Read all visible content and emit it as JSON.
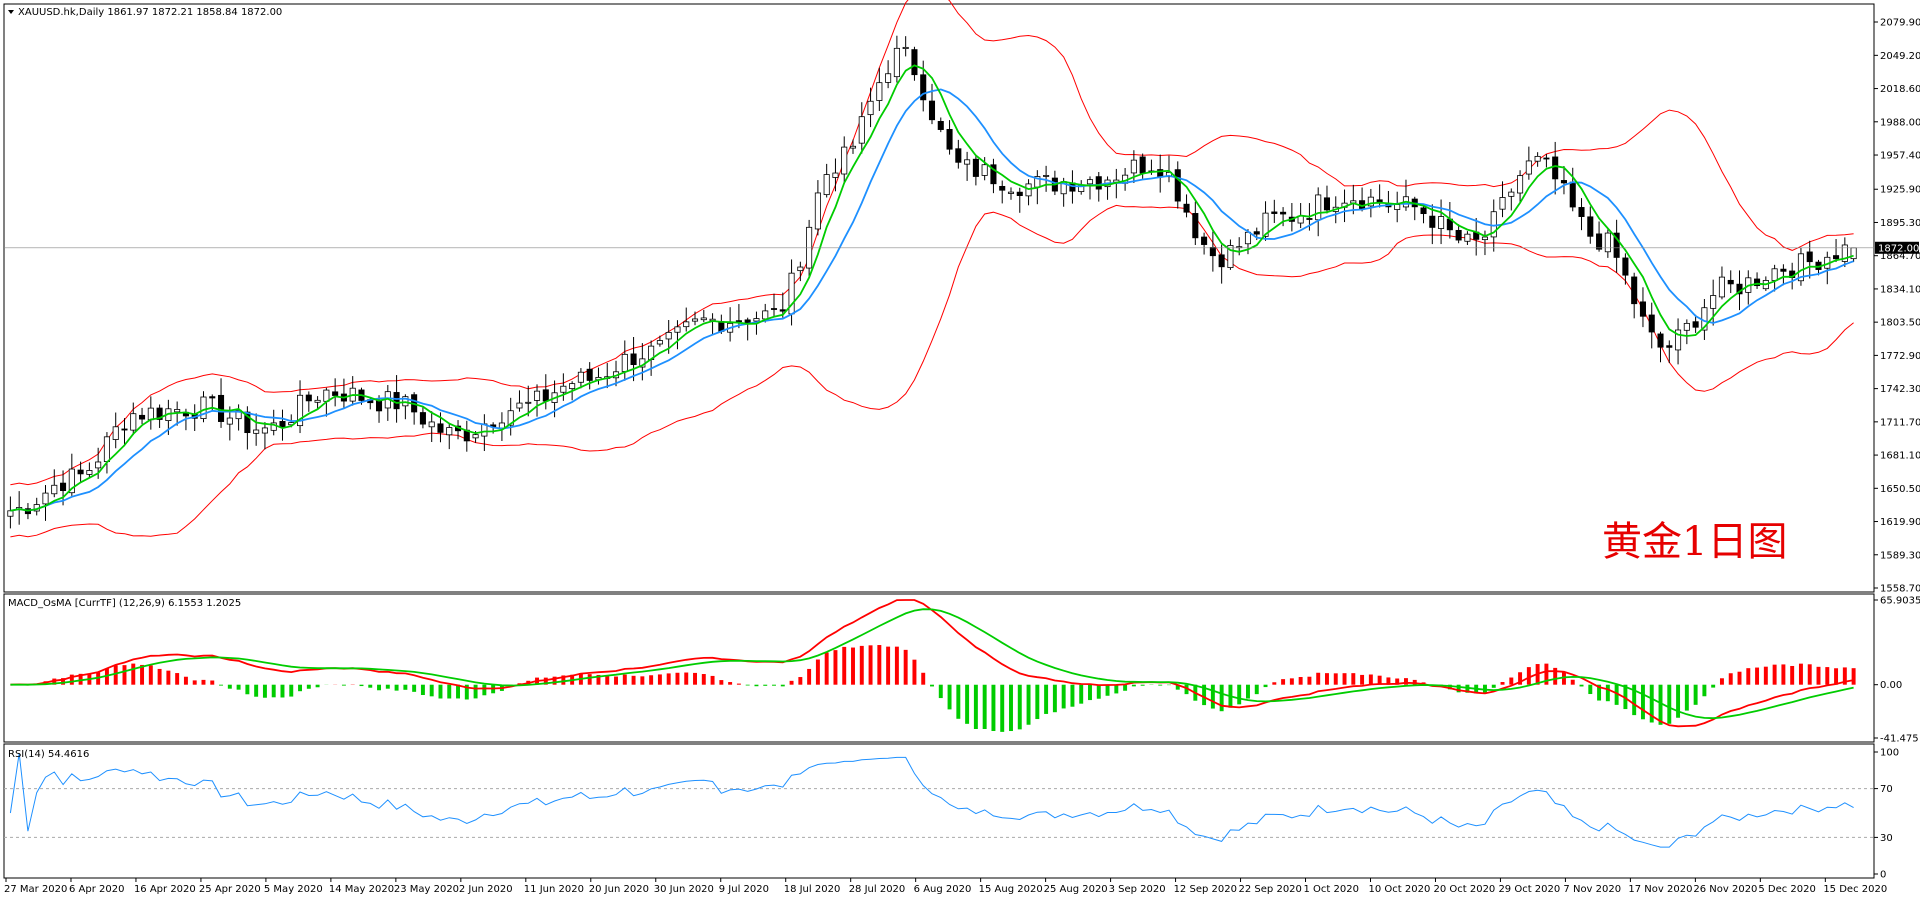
{
  "main_panel": {
    "header": "XAUUSD.hk,Daily  1861.97 1872.21 1858.84 1872.00",
    "overlay_label": "黄金1日图",
    "price_tag": "1872.00",
    "y_ticks": [
      "2079.90",
      "2049.20",
      "2018.60",
      "1988.00",
      "1957.40",
      "1925.90",
      "1895.30",
      "1864.70",
      "1834.10",
      "1803.50",
      "1772.90",
      "1742.30",
      "1711.70",
      "1681.10",
      "1650.50",
      "1619.90",
      "1589.30",
      "1558.70"
    ],
    "last_price": 1872.0
  },
  "macd_panel": {
    "header": "MACD_OsMA [CurrTF] (12,26,9) 6.1553 1.2025",
    "y_ticks": [
      "65.9035",
      "0.00",
      "-41.475"
    ]
  },
  "rsi_panel": {
    "header": "RSI(14) 54.4616",
    "y_ticks": [
      "100",
      "70",
      "30",
      "0"
    ],
    "levels": [
      70,
      30
    ]
  },
  "x_ticks": [
    "27 Mar 2020",
    "6 Apr 2020",
    "16 Apr 2020",
    "25 Apr 2020",
    "5 May 2020",
    "14 May 2020",
    "23 May 2020",
    "2 Jun 2020",
    "11 Jun 2020",
    "20 Jun 2020",
    "30 Jun 2020",
    "9 Jul 2020",
    "18 Jul 2020",
    "28 Jul 2020",
    "6 Aug 2020",
    "15 Aug 2020",
    "25 Aug 2020",
    "3 Sep 2020",
    "12 Sep 2020",
    "22 Sep 2020",
    "1 Oct 2020",
    "10 Oct 2020",
    "20 Oct 2020",
    "29 Oct 2020",
    "7 Nov 2020",
    "17 Nov 2020",
    "26 Nov 2020",
    "5 Dec 2020",
    "15 Dec 2020"
  ],
  "chart_data": [
    {
      "type": "candlestick",
      "symbol": "XAUUSD.hk",
      "timeframe": "Daily",
      "x_range": [
        "27 Mar 2020",
        "23 Dec 2020"
      ],
      "ylim": [
        1558.7,
        2079.9
      ],
      "ohlc_last": {
        "open": 1861.97,
        "high": 1872.21,
        "low": 1858.84,
        "close": 1872.0
      },
      "close_approx": [
        {
          "date": "27 Mar 2020",
          "value": 1630
        },
        {
          "date": "6 Apr 2020",
          "value": 1660
        },
        {
          "date": "16 Apr 2020",
          "value": 1720
        },
        {
          "date": "25 Apr 2020",
          "value": 1725
        },
        {
          "date": "5 May 2020",
          "value": 1705
        },
        {
          "date": "14 May 2020",
          "value": 1740
        },
        {
          "date": "23 May 2020",
          "value": 1730
        },
        {
          "date": "2 Jun 2020",
          "value": 1700
        },
        {
          "date": "11 Jun 2020",
          "value": 1725
        },
        {
          "date": "20 Jun 2020",
          "value": 1750
        },
        {
          "date": "30 Jun 2020",
          "value": 1775
        },
        {
          "date": "9 Jul 2020",
          "value": 1805
        },
        {
          "date": "18 Jul 2020",
          "value": 1810
        },
        {
          "date": "28 Jul 2020",
          "value": 1950
        },
        {
          "date": "6 Aug 2020",
          "value": 2050
        },
        {
          "date": "15 Aug 2020",
          "value": 1945
        },
        {
          "date": "25 Aug 2020",
          "value": 1930
        },
        {
          "date": "3 Sep 2020",
          "value": 1935
        },
        {
          "date": "12 Sep 2020",
          "value": 1950
        },
        {
          "date": "22 Sep 2020",
          "value": 1865
        },
        {
          "date": "1 Oct 2020",
          "value": 1900
        },
        {
          "date": "10 Oct 2020",
          "value": 1920
        },
        {
          "date": "20 Oct 2020",
          "value": 1910
        },
        {
          "date": "29 Oct 2020",
          "value": 1875
        },
        {
          "date": "7 Nov 2020",
          "value": 1950
        },
        {
          "date": "17 Nov 2020",
          "value": 1880
        },
        {
          "date": "26 Nov 2020",
          "value": 1780
        },
        {
          "date": "5 Dec 2020",
          "value": 1835
        },
        {
          "date": "15 Dec 2020",
          "value": 1855
        },
        {
          "date": "23 Dec 2020",
          "value": 1872
        }
      ],
      "overlays": [
        "bollinger bands (red)",
        "moving average (green)",
        "moving average (blue)"
      ],
      "colors": {
        "bull_candle": "#ffffff",
        "bear_candle": "#000000",
        "bollinger": "#ff0000",
        "ma_fast": "#00cc00",
        "ma_slow": "#1e90ff"
      }
    },
    {
      "type": "bar",
      "name": "MACD_OsMA",
      "ylim": [
        -41.475,
        65.9035
      ],
      "last_values": {
        "macd": 6.1553,
        "signal": 1.2025
      },
      "colors": {
        "positive_histogram": "#ff0000",
        "negative_histogram": "#00cc00",
        "macd_line": "#ff0000",
        "signal_line": "#00cc00"
      }
    },
    {
      "type": "line",
      "name": "RSI(14)",
      "ylim": [
        0,
        100
      ],
      "last_value": 54.4616,
      "levels": [
        70,
        30
      ],
      "colors": {
        "line": "#1e90ff"
      }
    }
  ]
}
